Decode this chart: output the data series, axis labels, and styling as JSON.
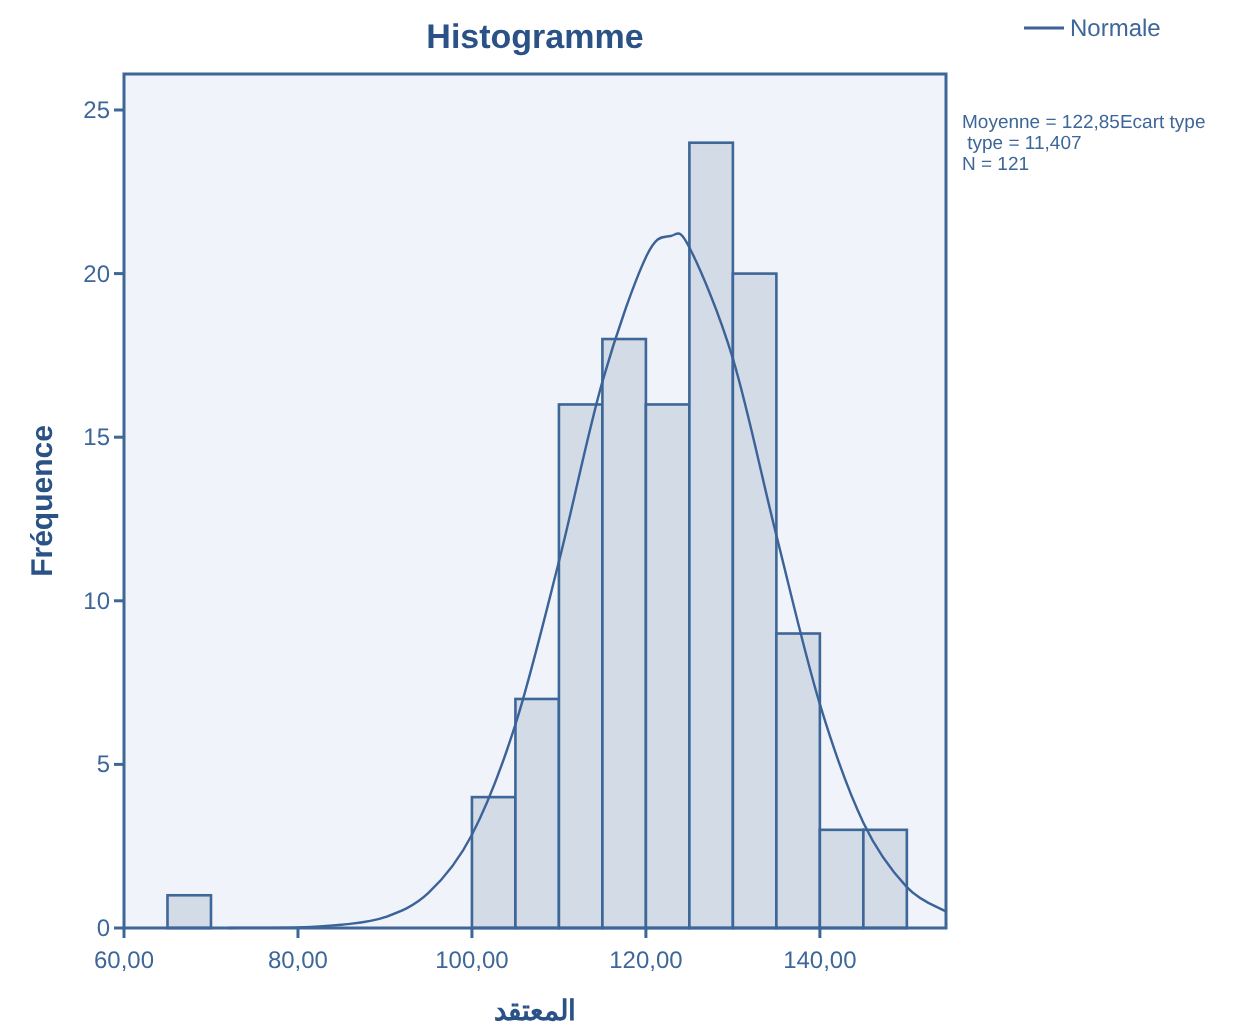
{
  "chart_data": {
    "type": "histogram",
    "title": "Histogramme",
    "xlabel": "المعتقد",
    "ylabel": "Fréquence",
    "annotations": [
      "Moyenne = 122,85Ecart type\n type = 11,407\nN = 121"
    ],
    "bins": [
      65,
      70,
      75,
      80,
      85,
      90,
      95,
      100,
      105,
      110,
      115,
      120,
      125,
      130,
      135,
      140,
      145,
      150
    ],
    "values": [
      1,
      0,
      0,
      0,
      0,
      0,
      0,
      4,
      7,
      16,
      18,
      16,
      24,
      20,
      9,
      3,
      3
    ],
    "color": "#d2dbe6",
    "series": [
      {
        "name": "Normale",
        "type": "line",
        "color": "#3b6398",
        "x": [
          72,
          80,
          85,
          90,
          95,
          100,
          105,
          110,
          115,
          120,
          122.85,
          125,
          130,
          135,
          140,
          145,
          150,
          154.5
        ],
        "values": [
          0,
          0.02,
          0.1,
          0.33,
          1.07,
          2.85,
          6.22,
          11.2,
          16.7,
          20.5,
          21.15,
          20.8,
          17.4,
          12,
          6.84,
          3.22,
          1.25,
          0.5
        ]
      }
    ],
    "xlim": [
      60,
      154.5
    ],
    "ylim": [
      0,
      26.1
    ],
    "xticks": [
      {
        "value": 60,
        "label": "60,00"
      },
      {
        "value": 80,
        "label": "80,00"
      },
      {
        "value": 100,
        "label": "100,00"
      },
      {
        "value": 120,
        "label": "120,00"
      },
      {
        "value": 140,
        "label": "140,00"
      }
    ],
    "yticks": [
      0,
      5,
      10,
      15,
      20,
      25
    ],
    "grid": false,
    "legend": "top right"
  }
}
